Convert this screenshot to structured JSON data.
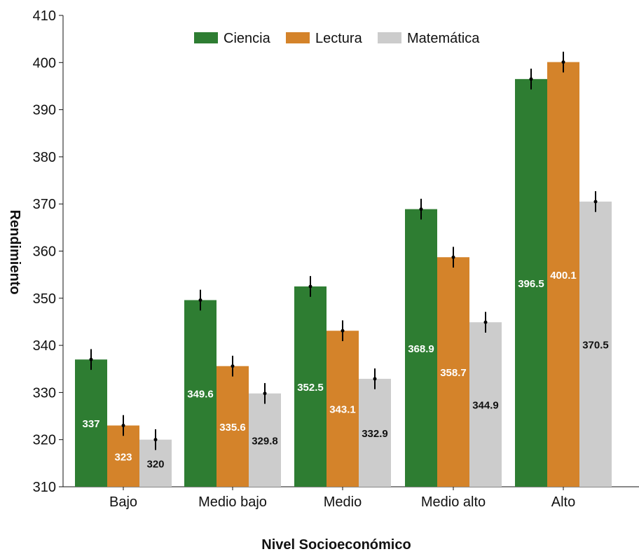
{
  "chart_data": {
    "type": "bar",
    "title": "",
    "xlabel": "Nivel Socioeconómico",
    "ylabel": "Rendimiento",
    "ylim": [
      310,
      410
    ],
    "yticks": [
      310,
      320,
      330,
      340,
      350,
      360,
      370,
      380,
      390,
      400,
      410
    ],
    "categories": [
      "Bajo",
      "Medio bajo",
      "Medio",
      "Medio alto",
      "Alto"
    ],
    "series": [
      {
        "name": "Ciencia",
        "color": "#2e7d32",
        "label_color": "#ffffff",
        "values": [
          337,
          349.6,
          352.5,
          368.9,
          396.5
        ],
        "errors": [
          2.2,
          2.2,
          2.2,
          2.2,
          2.2
        ]
      },
      {
        "name": "Lectura",
        "color": "#d4832a",
        "label_color": "#ffffff",
        "values": [
          323,
          335.6,
          343.1,
          358.7,
          400.1
        ],
        "errors": [
          2.2,
          2.2,
          2.2,
          2.2,
          2.2
        ]
      },
      {
        "name": "Matemática",
        "color": "#cccccc",
        "label_color": "#111111",
        "values": [
          320,
          329.8,
          332.9,
          344.9,
          370.5
        ],
        "errors": [
          2.2,
          2.2,
          2.2,
          2.2,
          2.2
        ]
      }
    ],
    "legend_position": "top-center",
    "grid": false,
    "error_bars": true
  }
}
